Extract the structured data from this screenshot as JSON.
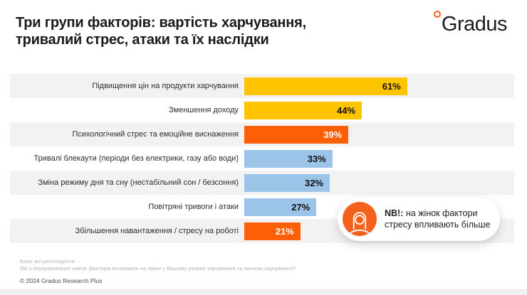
{
  "header": {
    "title_line1": "Три групи факторів: вартість харчування,",
    "title_line2": "тривалий стрес, атаки та їх наслідки",
    "logo_text": "Gradus"
  },
  "chart_data": {
    "type": "bar",
    "orientation": "horizontal",
    "title": "Три групи факторів: вартість харчування, тривалий стрес, атаки та їх наслідки",
    "categories": [
      "Підвищення цін на продукти харчування",
      "Зменшення доходу",
      "Психологічний стрес та емоційне виснаження",
      "Тривалі блекаути (періоди без електрики, газу або води)",
      "Зміна режиму дня та сну (нестабільний сон / безсоння)",
      "Повітряні тривоги і атаки",
      "Збільшення навантаження / стресу на роботі"
    ],
    "values": [
      61,
      44,
      39,
      33,
      32,
      27,
      21
    ],
    "value_labels": [
      "61%",
      "44%",
      "39%",
      "33%",
      "32%",
      "27%",
      "21%"
    ],
    "bar_colors": [
      "#ffc400",
      "#ffc400",
      "#fc5f05",
      "#9cc3e8",
      "#9cc3e8",
      "#9cc3e8",
      "#fc5f05"
    ],
    "value_label_colors": [
      "#111111",
      "#111111",
      "#ffffff",
      "#111111",
      "#111111",
      "#111111",
      "#ffffff"
    ],
    "xlabel": "",
    "ylabel": "",
    "xlim": [
      0,
      100
    ],
    "axes_visible": false,
    "grid": false,
    "legend": "none",
    "row_stripe_color": "#f2f2f2"
  },
  "callout": {
    "badge": "NB!:",
    "text": " на жінок фактори стресу впливають більше",
    "icon": "woman-icon",
    "circle_color": "#f4611c"
  },
  "footer": {
    "base": "База: всі респонденти",
    "question": "Які з перерахованих нижче факторів впливають на зміни у Вашому режимі харчування та звичках харчування?",
    "copyright": "© 2024 Gradus Research Plus"
  },
  "colors": {
    "gold": "#ffc400",
    "orange": "#fc5f05",
    "light_blue": "#9cc3e8",
    "accent_orange": "#f4611c",
    "stripe_gray": "#f2f2f2"
  }
}
